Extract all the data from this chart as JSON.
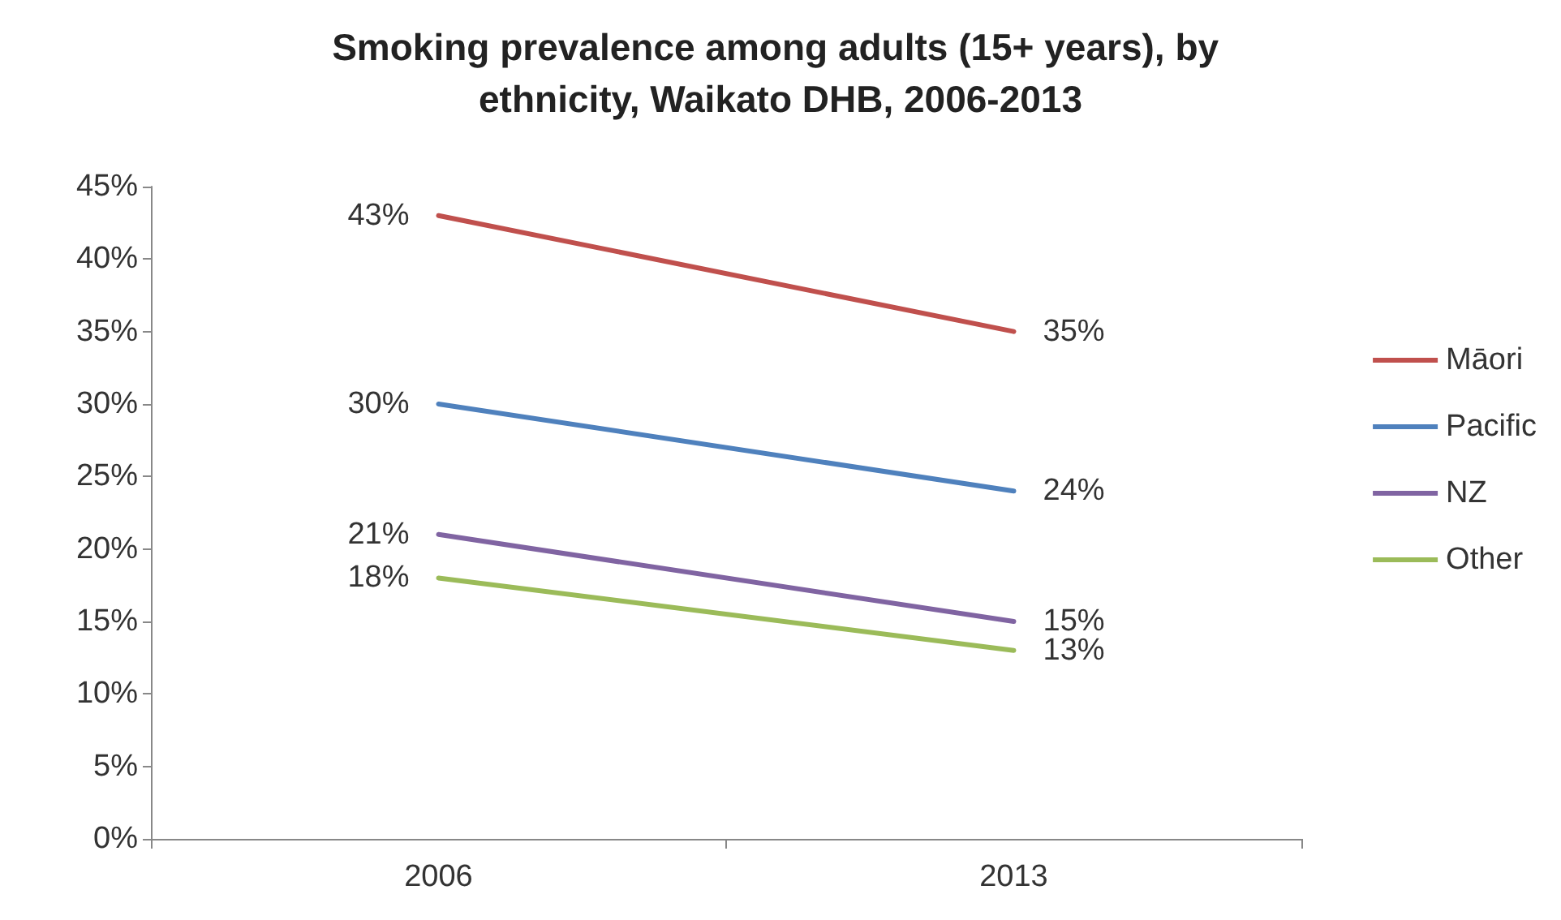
{
  "chart_data": {
    "type": "line",
    "title": "Smoking prevalence among adults (15+ years), by ethnicity, Waikato DHB, 2006-2013",
    "categories": [
      "2006",
      "2013"
    ],
    "series": [
      {
        "name": "Māori",
        "color": "#c0504d",
        "values": [
          43,
          35
        ],
        "value_labels": [
          "43%",
          "35%"
        ]
      },
      {
        "name": "Pacific",
        "color": "#4f81bd",
        "values": [
          30,
          24
        ],
        "value_labels": [
          "30%",
          "24%"
        ]
      },
      {
        "name": "NZ",
        "color": "#8064a2",
        "values": [
          21,
          15
        ],
        "value_labels": [
          "21%",
          "15%"
        ]
      },
      {
        "name": "Other",
        "color": "#9bbb59",
        "values": [
          18,
          13
        ],
        "value_labels": [
          "18%",
          "13%"
        ]
      }
    ],
    "ylim": [
      0,
      45
    ],
    "yticks": [
      {
        "value": 0,
        "label": "0%"
      },
      {
        "value": 5,
        "label": "5%"
      },
      {
        "value": 10,
        "label": "10%"
      },
      {
        "value": 15,
        "label": "15%"
      },
      {
        "value": 20,
        "label": "20%"
      },
      {
        "value": 25,
        "label": "25%"
      },
      {
        "value": 30,
        "label": "30%"
      },
      {
        "value": 35,
        "label": "35%"
      },
      {
        "value": 40,
        "label": "40%"
      },
      {
        "value": 45,
        "label": "45%"
      }
    ],
    "grid": false,
    "legend": "right",
    "marker": "none",
    "line_style": "solid"
  }
}
